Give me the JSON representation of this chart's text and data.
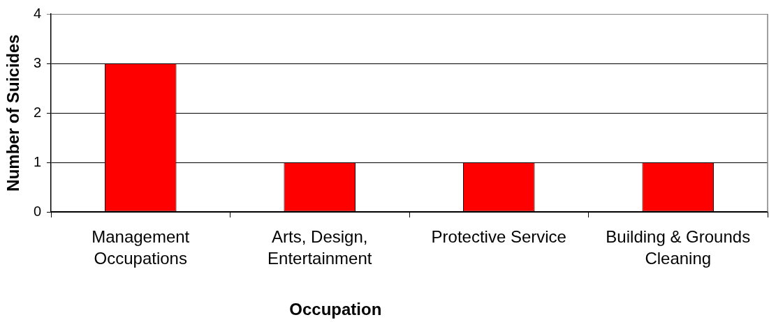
{
  "chart_data": {
    "type": "bar",
    "xlabel": "Occupation",
    "ylabel": "Number of Suicides",
    "categories": [
      "Management Occupations",
      "Arts, Design, Entertainment",
      "Protective Service",
      "Building & Grounds Cleaning"
    ],
    "values": [
      3,
      1,
      1,
      1
    ],
    "color": "#ff0000",
    "ylim": [
      0,
      4
    ],
    "yticks": [
      0,
      1,
      2,
      3,
      4
    ],
    "grid": "y"
  }
}
